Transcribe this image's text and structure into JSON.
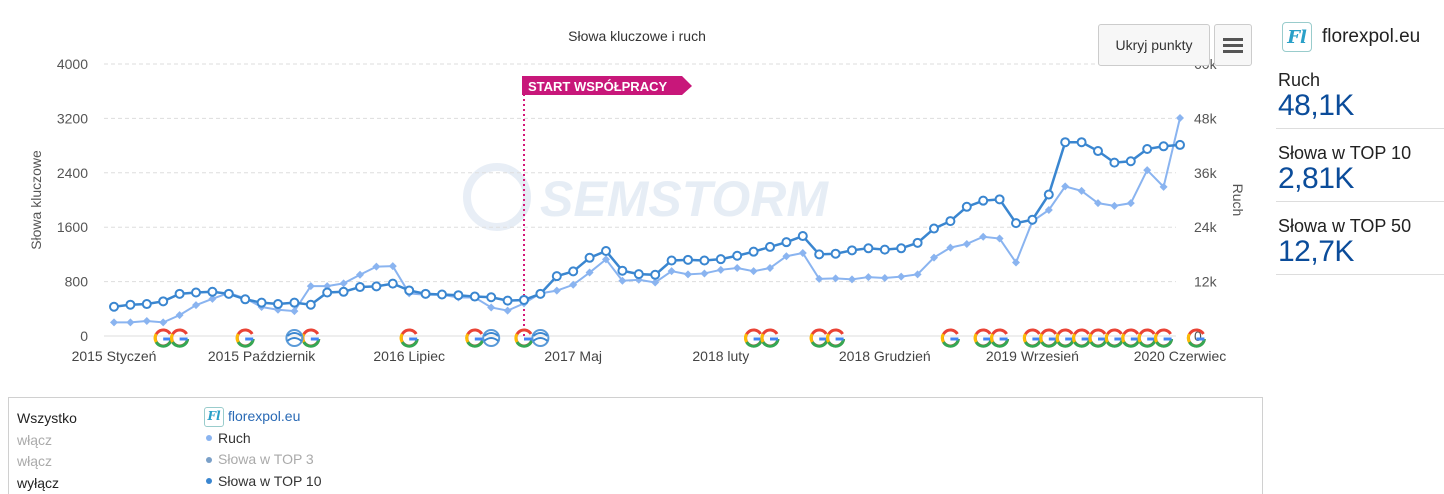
{
  "chart_data": {
    "type": "line",
    "title": "Słowa kluczowe i ruch",
    "ylabel_left": "Słowa kluczowe",
    "ylabel_right": "Ruch",
    "ylim_left": [
      0,
      4000
    ],
    "ylim_right": [
      0,
      60000
    ],
    "yticks_left": [
      "0",
      "800",
      "1600",
      "2400",
      "3200",
      "4000"
    ],
    "yticks_right": [
      "0",
      "12k",
      "24k",
      "36k",
      "48k",
      "60k"
    ],
    "x_labels": [
      {
        "label": "2015 Styczeń",
        "index": 0
      },
      {
        "label": "2015 Październik",
        "index": 9
      },
      {
        "label": "2016 Lipiec",
        "index": 18
      },
      {
        "label": "2017 Maj",
        "index": 28
      },
      {
        "label": "2018 luty",
        "index": 37
      },
      {
        "label": "2018 Grudzień",
        "index": 47
      },
      {
        "label": "2019 Wrzesień",
        "index": 56
      },
      {
        "label": "2020 Czerwiec",
        "index": 65
      }
    ],
    "annotation": {
      "label": "START WSPÓŁPRACY",
      "index": 25
    },
    "google_update_indices": [
      3,
      4,
      8,
      12,
      18,
      22,
      25,
      39,
      40,
      43,
      44,
      51,
      53,
      54,
      56,
      57,
      58,
      59,
      60,
      61,
      62,
      63,
      64,
      66
    ],
    "other_update_indices": [
      11,
      23,
      26
    ],
    "series": [
      {
        "name": "Ruch",
        "axis": "right",
        "color": "#8ab4f0",
        "marker": "diamond",
        "values": [
          3000,
          3000,
          3300,
          3000,
          4600,
          6800,
          8200,
          9500,
          8300,
          6400,
          5800,
          5500,
          11000,
          11000,
          11600,
          13500,
          15300,
          15400,
          9400,
          9100,
          9100,
          8500,
          8500,
          6300,
          5600,
          7200,
          9400,
          10000,
          11300,
          14000,
          16900,
          12200,
          12400,
          11800,
          14300,
          13600,
          13800,
          14600,
          15000,
          14300,
          15000,
          17600,
          18300,
          12600,
          12700,
          12500,
          13000,
          12800,
          13100,
          13600,
          17300,
          19500,
          20300,
          21900,
          21500,
          16200,
          25300,
          27800,
          33000,
          32000,
          29300,
          28700,
          29300,
          36600,
          32900,
          48100
        ]
      },
      {
        "name": "Słowa w TOP 10",
        "axis": "left",
        "color": "#3a86d0",
        "marker": "circle",
        "values": [
          430,
          460,
          470,
          510,
          620,
          640,
          650,
          620,
          540,
          490,
          470,
          490,
          460,
          640,
          650,
          720,
          730,
          770,
          670,
          620,
          610,
          600,
          580,
          570,
          520,
          530,
          620,
          880,
          950,
          1150,
          1250,
          960,
          910,
          900,
          1110,
          1120,
          1110,
          1130,
          1180,
          1240,
          1310,
          1380,
          1470,
          1200,
          1210,
          1260,
          1290,
          1270,
          1290,
          1370,
          1580,
          1690,
          1900,
          1990,
          2010,
          1660,
          1710,
          2080,
          2850,
          2850,
          2720,
          2550,
          2570,
          2750,
          2790,
          2810
        ]
      }
    ]
  },
  "toolbar": {
    "hide_points_label": "Ukryj punkty"
  },
  "sidebar": {
    "logo_text": "Fl",
    "site": "florexpol.eu",
    "metrics": [
      {
        "label": "Ruch",
        "value": "48,1K"
      },
      {
        "label": "Słowa w TOP 10",
        "value": "2,81K"
      },
      {
        "label": "Słowa w TOP 50",
        "value": "12,7K"
      }
    ]
  },
  "legend": {
    "all_label": "Wszystko",
    "toggles": [
      "włącz",
      "włącz",
      "wyłącz"
    ],
    "site": "florexpol.eu",
    "items": [
      {
        "label": "Ruch",
        "color": "#8ab4f0",
        "enabled": true
      },
      {
        "label": "Słowa w TOP 3",
        "color": "#7aa0c8",
        "enabled": false
      },
      {
        "label": "Słowa w TOP 10",
        "color": "#3a86d0",
        "enabled": true
      }
    ]
  },
  "watermark": "SEMSTORM"
}
